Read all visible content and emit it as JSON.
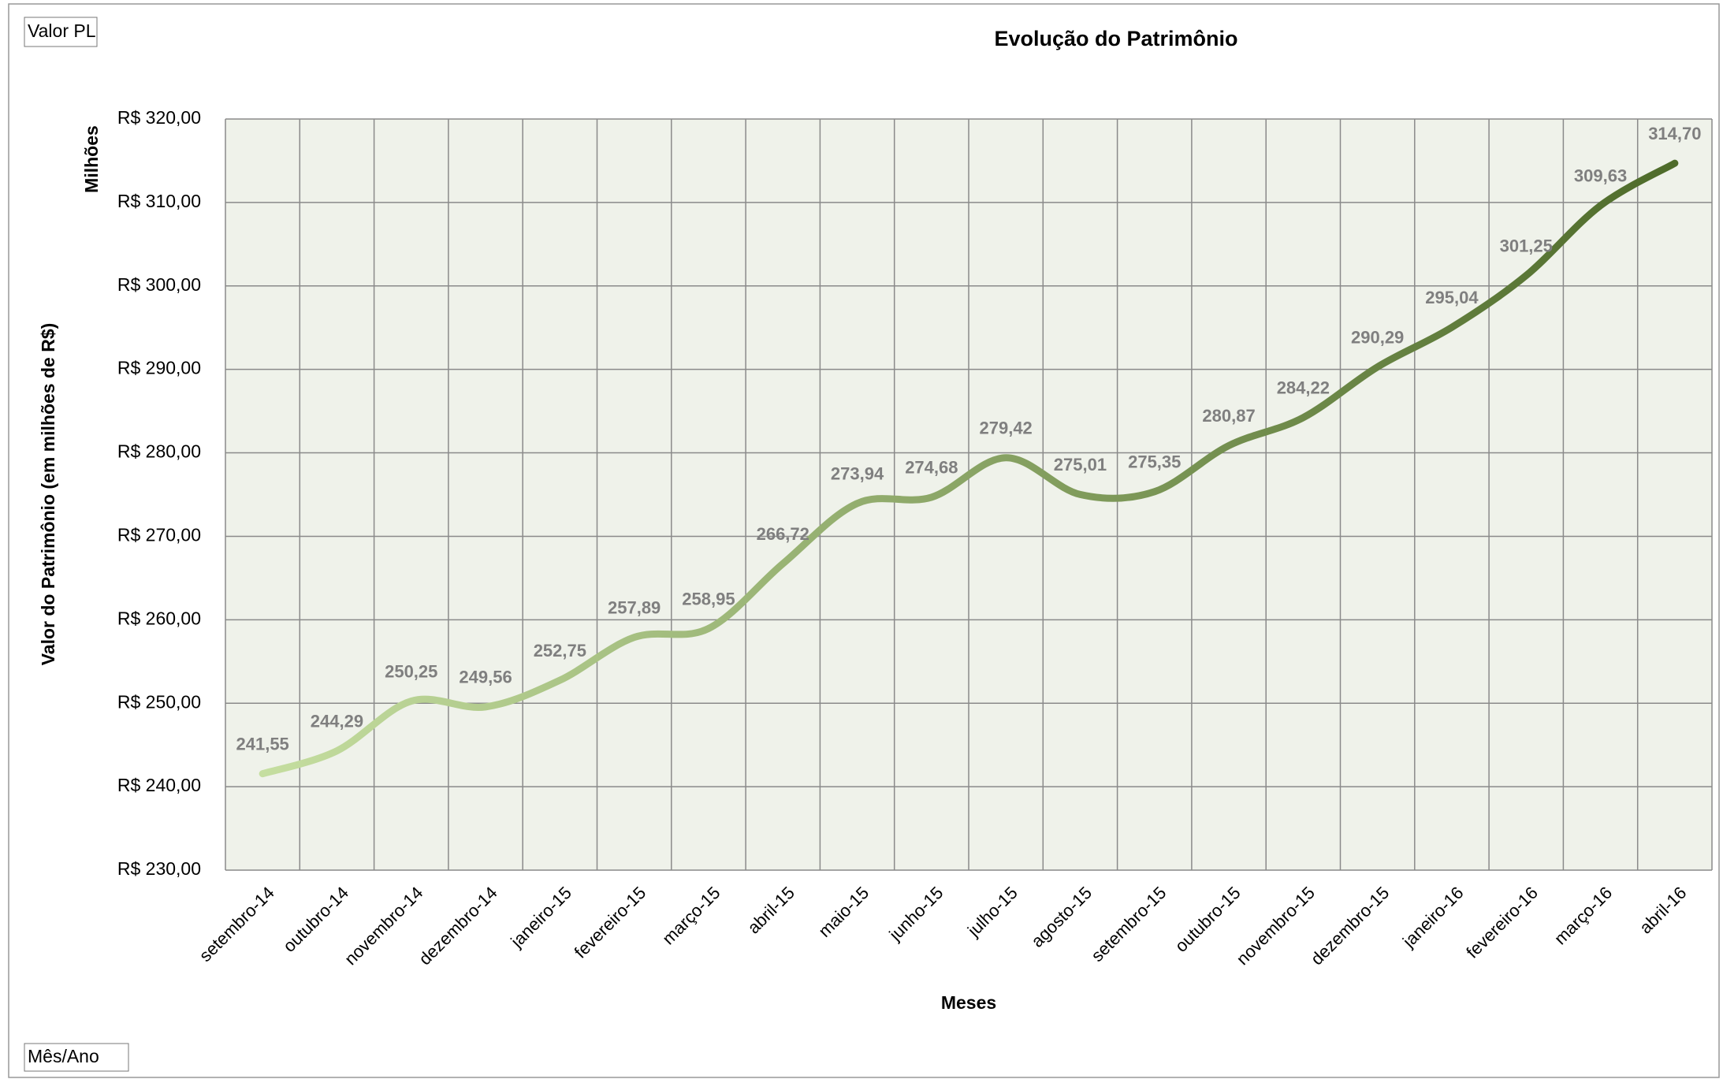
{
  "chart_data": {
    "type": "line",
    "title": "Evolução do Patrimônio",
    "corner_labels": [
      "Valor PL",
      "Mês/Ano"
    ],
    "y_unit_label": "Milhões",
    "y_label": "Valor do Patrimônio (em milhões de R$)",
    "x_label": "Meses",
    "categories": [
      "setembro-14",
      "outubro-14",
      "novembro-14",
      "dezembro-14",
      "janeiro-15",
      "fevereiro-15",
      "março-15",
      "abril-15",
      "maio-15",
      "junho-15",
      "julho-15",
      "agosto-15",
      "setembro-15",
      "outubro-15",
      "novembro-15",
      "dezembro-15",
      "janeiro-16",
      "fevereiro-16",
      "março-16",
      "abril-16"
    ],
    "series": [
      {
        "name": "Valor PL",
        "color": [
          "#c5dea0",
          "#4e6b2a"
        ],
        "values": [
          241.55,
          244.29,
          250.25,
          249.56,
          252.75,
          257.89,
          258.95,
          266.72,
          273.94,
          274.68,
          279.42,
          275.01,
          275.35,
          280.87,
          284.22,
          290.29,
          295.04,
          301.25,
          309.63,
          314.7
        ],
        "value_labels": [
          "241,55",
          "244,29",
          "250,25",
          "249,56",
          "252,75",
          "257,89",
          "258,95",
          "266,72",
          "273,94",
          "274,68",
          "279,42",
          "275,01",
          "275,35",
          "280,87",
          "284,22",
          "290,29",
          "295,04",
          "301,25",
          "309,63",
          "314,70"
        ]
      }
    ],
    "ylim": [
      230,
      320
    ],
    "yticks": [
      {
        "value": 230,
        "label": "R$ 230,00"
      },
      {
        "value": 240,
        "label": "R$ 240,00"
      },
      {
        "value": 250,
        "label": "R$ 250,00"
      },
      {
        "value": 260,
        "label": "R$ 260,00"
      },
      {
        "value": 270,
        "label": "R$ 270,00"
      },
      {
        "value": 280,
        "label": "R$ 280,00"
      },
      {
        "value": 290,
        "label": "R$ 290,00"
      },
      {
        "value": 300,
        "label": "R$ 300,00"
      },
      {
        "value": 310,
        "label": "R$ 310,00"
      },
      {
        "value": 320,
        "label": "R$ 320,00"
      }
    ],
    "grid": true
  }
}
